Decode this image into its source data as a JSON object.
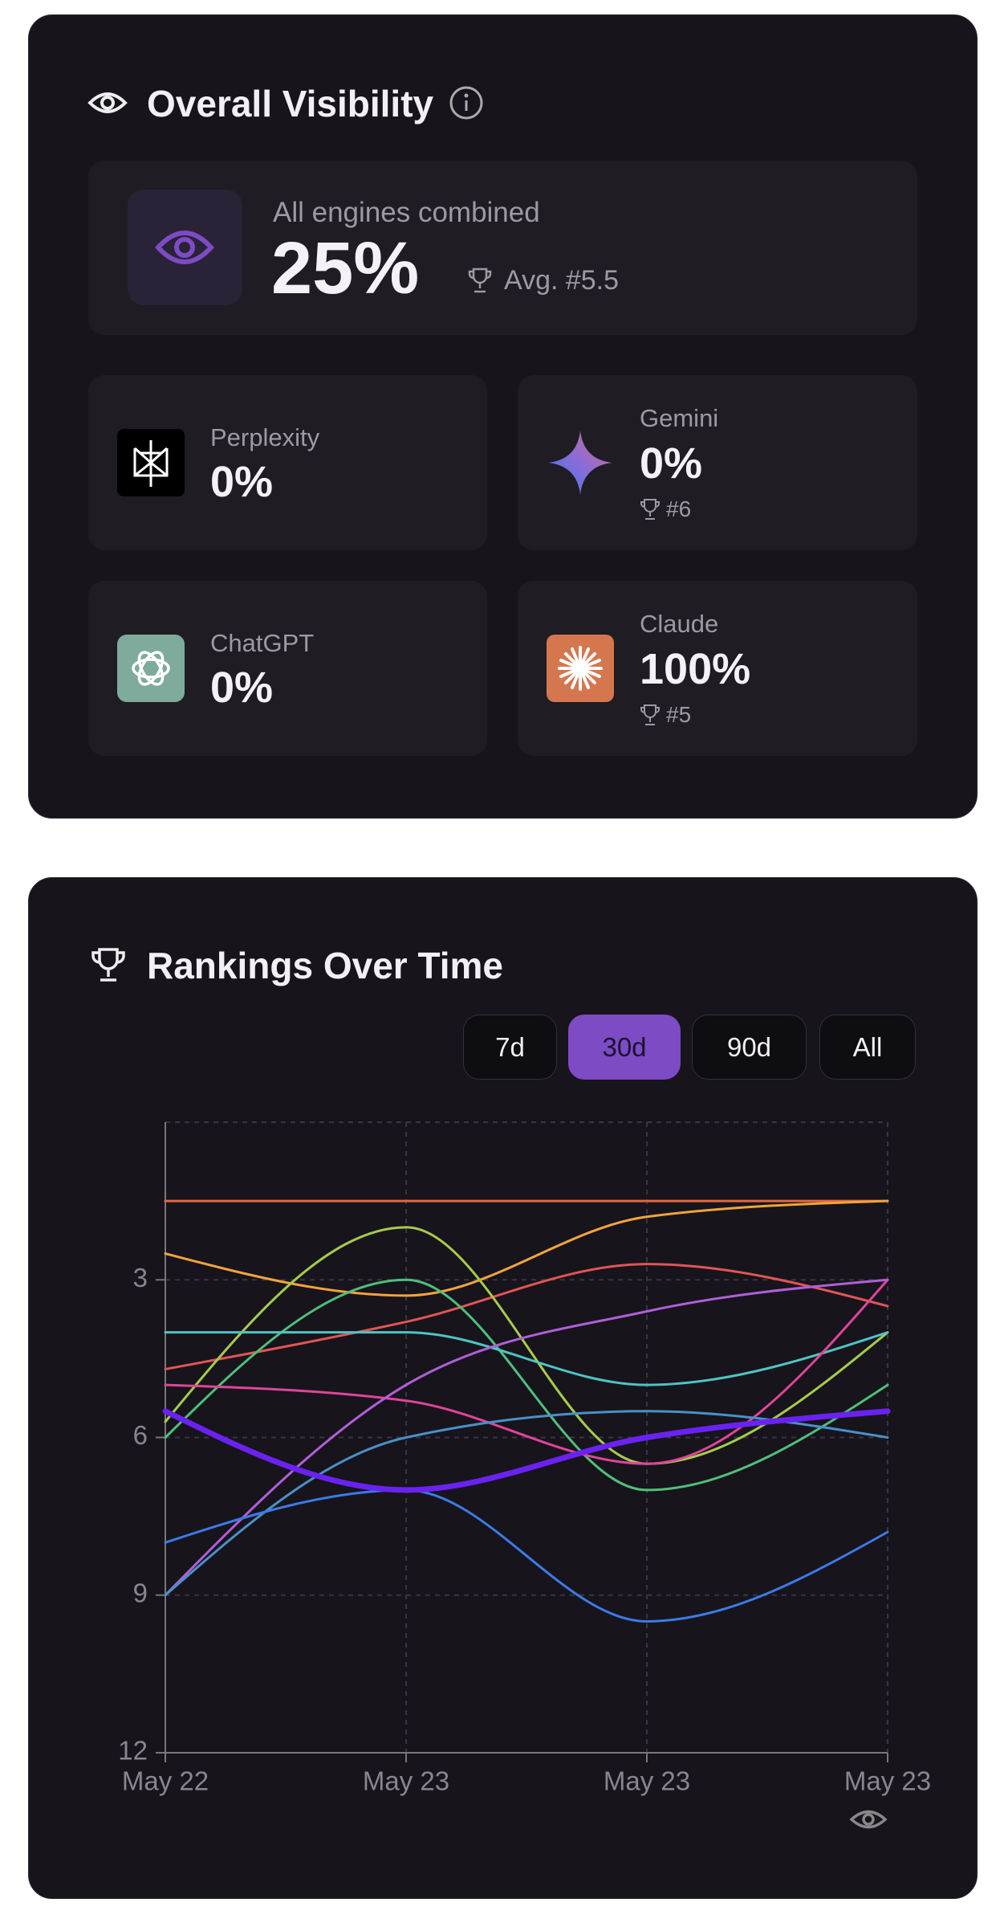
{
  "overview": {
    "title": "Overall Visibility",
    "summary": {
      "label": "All engines combined",
      "value": "25%",
      "rank": "Avg. #5.5"
    },
    "engines": [
      {
        "name": "Perplexity",
        "value": "0%"
      },
      {
        "name": "Gemini",
        "value": "0%",
        "rank": "#6"
      },
      {
        "name": "ChatGPT",
        "value": "0%"
      },
      {
        "name": "Claude",
        "value": "100%",
        "rank": "#5"
      }
    ]
  },
  "chart_data": {
    "type": "line",
    "title": "Rankings Over Time",
    "ranges": [
      "7d",
      "30d",
      "90d",
      "All"
    ],
    "active_range": 1,
    "categories": [
      "May 22",
      "May 23",
      "May 23",
      "May 23"
    ],
    "ylim": [
      12,
      0
    ],
    "yticks": [
      3,
      6,
      9,
      12
    ],
    "grid": true,
    "series": [
      {
        "color": "#e8663d",
        "values": [
          1.5,
          1.5,
          1.5,
          1.5
        ]
      },
      {
        "color": "#f2a33d",
        "values": [
          2.5,
          3.3,
          1.8,
          1.5
        ]
      },
      {
        "color": "#e05555",
        "values": [
          4.7,
          3.8,
          2.7,
          3.5
        ]
      },
      {
        "color": "#a6cc4a",
        "values": [
          5.7,
          2.0,
          6.5,
          4.0
        ]
      },
      {
        "color": "#4fbf7a",
        "values": [
          6.0,
          3.0,
          7.0,
          5.0
        ]
      },
      {
        "color": "#4fc4c4",
        "values": [
          4.0,
          4.0,
          5.0,
          4.0
        ]
      },
      {
        "color": "#e0449a",
        "values": [
          5.0,
          5.3,
          6.5,
          3.0
        ]
      },
      {
        "color": "#b05fd8",
        "values": [
          9.0,
          5.0,
          3.6,
          3.0
        ]
      },
      {
        "color": "#4a90c8",
        "values": [
          9.0,
          6.0,
          5.5,
          6.0
        ]
      },
      {
        "color": "#3b7be8",
        "values": [
          8.0,
          7.0,
          9.5,
          7.8
        ]
      },
      {
        "color": "#6a22f0",
        "values": [
          5.5,
          7.0,
          6.0,
          5.5
        ],
        "line_width": 7
      }
    ]
  }
}
